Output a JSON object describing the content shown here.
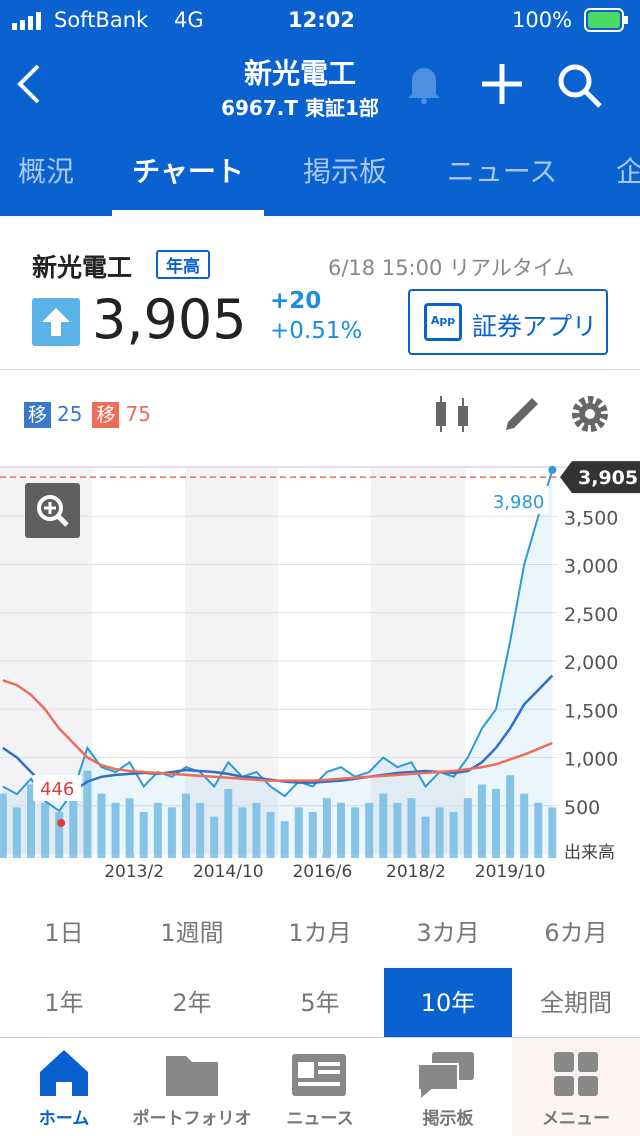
{
  "status": {
    "carrier": "SoftBank",
    "network": "4G",
    "time": "12:02",
    "battery": "100%"
  },
  "header": {
    "title": "新光電工",
    "code": "6967.T 東証1部"
  },
  "tabs": [
    "概況",
    "チャート",
    "掲示板",
    "ニュース",
    "企"
  ],
  "stock": {
    "name": "新光電工",
    "badge": "年高",
    "datetime": "6/18 15:00 リアルタイム",
    "price": "3,905",
    "change": "+20",
    "change_pct": "+0.51%",
    "app_icon": "App",
    "app_button": "証券アプリ"
  },
  "indicators": [
    {
      "label": "移",
      "period": 25,
      "color": "#3b78c9"
    },
    {
      "label": "移",
      "period": 75,
      "color": "#ee6c58"
    }
  ],
  "chart": {
    "type": "line",
    "ylim": [
      0,
      4000
    ],
    "xlim": [
      2010.7,
      2020.6
    ],
    "yticks": [
      500,
      {
        "value": 1000,
        "label": "1,000"
      },
      {
        "value": 1500,
        "label": "1,500"
      },
      {
        "value": 2000,
        "label": "2,000"
      },
      {
        "value": 2500,
        "label": "2,500"
      },
      {
        "value": 3000,
        "label": "3,000"
      },
      {
        "value": 3500,
        "label": "3,500"
      }
    ],
    "xticks": [
      {
        "value": 2013.08,
        "label": "2013/2"
      },
      {
        "value": 2014.75,
        "label": "2014/10"
      },
      {
        "value": 2016.42,
        "label": "2016/6"
      },
      {
        "value": 2018.08,
        "label": "2018/2"
      },
      {
        "value": 2019.75,
        "label": "2019/10"
      }
    ],
    "x": [
      2010.75,
      2011,
      2011.25,
      2011.5,
      2011.75,
      2012,
      2012.25,
      2012.5,
      2012.75,
      2013,
      2013.25,
      2013.5,
      2013.75,
      2014,
      2014.25,
      2014.5,
      2014.75,
      2015,
      2015.25,
      2015.5,
      2015.75,
      2016,
      2016.25,
      2016.5,
      2016.75,
      2017,
      2017.25,
      2017.5,
      2017.75,
      2018,
      2018.25,
      2018.5,
      2018.75,
      2019,
      2019.25,
      2019.5,
      2019.75,
      2020,
      2020.25,
      2020.5
    ],
    "series": [
      {
        "name": "price",
        "color": "#2b9bd6",
        "values": [
          700,
          620,
          780,
          550,
          446,
          650,
          1100,
          900,
          850,
          950,
          700,
          850,
          800,
          900,
          850,
          700,
          950,
          800,
          850,
          700,
          600,
          750,
          700,
          850,
          900,
          800,
          850,
          1000,
          900,
          950,
          700,
          850,
          800,
          1000,
          1300,
          1500,
          2200,
          3000,
          3500,
          3980
        ]
      },
      {
        "name": "ma25",
        "color": "#2f6fc6",
        "values": [
          1100,
          1000,
          850,
          700,
          600,
          650,
          750,
          800,
          820,
          830,
          840,
          830,
          850,
          870,
          860,
          850,
          830,
          800,
          790,
          770,
          750,
          740,
          740,
          750,
          760,
          780,
          800,
          820,
          840,
          850,
          860,
          850,
          840,
          860,
          950,
          1100,
          1300,
          1550,
          1700,
          1850
        ]
      },
      {
        "name": "ma75",
        "color": "#ee6c58",
        "values": [
          1800,
          1750,
          1650,
          1500,
          1300,
          1150,
          1000,
          920,
          880,
          860,
          850,
          840,
          830,
          820,
          810,
          800,
          790,
          780,
          770,
          760,
          760,
          760,
          760,
          770,
          780,
          790,
          800,
          810,
          820,
          830,
          840,
          850,
          860,
          880,
          900,
          930,
          980,
          1030,
          1090,
          1150
        ]
      }
    ],
    "volume": {
      "label": "出来高",
      "lim": [
        0,
        100
      ],
      "color": "#8cc6e8",
      "values": [
        70,
        55,
        80,
        60,
        50,
        65,
        95,
        70,
        60,
        65,
        50,
        60,
        55,
        70,
        60,
        45,
        75,
        55,
        60,
        50,
        40,
        55,
        50,
        65,
        60,
        55,
        60,
        70,
        60,
        65,
        45,
        55,
        50,
        65,
        80,
        75,
        90,
        70,
        60,
        55
      ]
    },
    "current": {
      "value": 3905,
      "label": "3,905"
    },
    "high": {
      "value": 3980,
      "label": "3,980"
    },
    "low": {
      "value": 446,
      "label": "446"
    }
  },
  "periods": [
    [
      "1日",
      "1週間",
      "1カ月",
      "3カ月",
      "6カ月"
    ],
    [
      "1年",
      "2年",
      "5年",
      "10年",
      "全期間"
    ]
  ],
  "selected_period": "10年",
  "nav": [
    "ホーム",
    "ポートフォリオ",
    "ニュース",
    "掲示板",
    "メニュー"
  ]
}
